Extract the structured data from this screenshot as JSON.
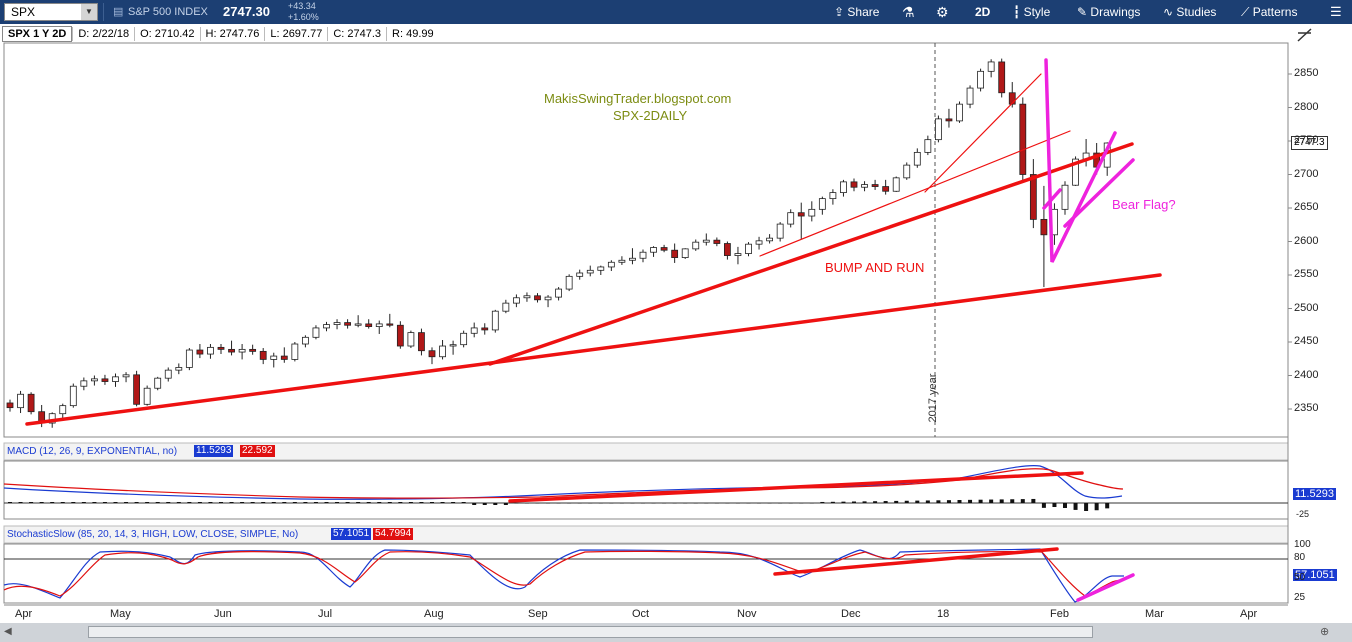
{
  "toolbar": {
    "symbol": "SPX",
    "name": "S&P 500 INDEX",
    "price": "2747.30",
    "change": "+43.34",
    "change_pct": "+1.60%",
    "share": "Share",
    "period": "2D",
    "style": "Style",
    "drawings": "Drawings",
    "studies": "Studies",
    "patterns": "Patterns"
  },
  "info": {
    "title": "SPX 1 Y 2D",
    "date": "D: 2/22/18",
    "open": "O: 2710.42",
    "high": "H: 2747.76",
    "low": "L: 2697.77",
    "close": "C: 2747.3",
    "rsi": "R: 49.99"
  },
  "annotations": {
    "site": "MakisSwingTrader.blogspot.com",
    "subtitle": "SPX-2DAILY",
    "bump": "BUMP AND RUN",
    "flag": "Bear Flag?",
    "year": "2017 year"
  },
  "macd": {
    "label": "MACD (12, 26, 9, EXPONENTIAL, no)",
    "v1": "11.5293",
    "v2": "22.592",
    "last": "11.5293"
  },
  "stoch": {
    "label": "StochasticSlow (85, 20, 14, 3, HIGH, LOW, CLOSE, SIMPLE, No)",
    "v1": "57.1051",
    "v2": "54.7994",
    "last": "57.1051"
  },
  "price_label": "2747.3",
  "colors": {
    "up": "#ffffff",
    "down": "#b01818",
    "trend": "#ee1111",
    "flag": "#ee22dd",
    "macd": "#1a3bd1",
    "signal": "#e01010",
    "toolbar": "#1c3f73"
  },
  "chart_data": {
    "type": "candlestick",
    "x_tick_labels": [
      "Apr",
      "May",
      "Jun",
      "Jul",
      "Aug",
      "Sep",
      "Oct",
      "Nov",
      "Dec",
      "18",
      "Feb",
      "Mar",
      "Apr"
    ],
    "y_ticks": [
      2350,
      2400,
      2450,
      2500,
      2550,
      2600,
      2650,
      2700,
      2750,
      2800,
      2850
    ],
    "ylim": [
      2310,
      2880
    ],
    "candles": [
      [
        2359,
        2364,
        2346,
        2352
      ],
      [
        2352,
        2377,
        2344,
        2372
      ],
      [
        2372,
        2375,
        2342,
        2346
      ],
      [
        2346,
        2356,
        2323,
        2329
      ],
      [
        2329,
        2345,
        2322,
        2343
      ],
      [
        2343,
        2358,
        2335,
        2355
      ],
      [
        2355,
        2388,
        2352,
        2384
      ],
      [
        2384,
        2397,
        2378,
        2392
      ],
      [
        2392,
        2400,
        2385,
        2395
      ],
      [
        2395,
        2401,
        2386,
        2391
      ],
      [
        2391,
        2403,
        2383,
        2398
      ],
      [
        2398,
        2405,
        2390,
        2401
      ],
      [
        2401,
        2407,
        2354,
        2357
      ],
      [
        2357,
        2385,
        2355,
        2381
      ],
      [
        2381,
        2398,
        2378,
        2396
      ],
      [
        2396,
        2412,
        2391,
        2408
      ],
      [
        2408,
        2418,
        2402,
        2412
      ],
      [
        2412,
        2441,
        2408,
        2438
      ],
      [
        2438,
        2447,
        2426,
        2432
      ],
      [
        2432,
        2447,
        2425,
        2442
      ],
      [
        2442,
        2447,
        2432,
        2439
      ],
      [
        2439,
        2452,
        2430,
        2435
      ],
      [
        2435,
        2447,
        2424,
        2439
      ],
      [
        2439,
        2446,
        2431,
        2436
      ],
      [
        2436,
        2441,
        2417,
        2424
      ],
      [
        2424,
        2434,
        2412,
        2429
      ],
      [
        2429,
        2442,
        2419,
        2424
      ],
      [
        2424,
        2450,
        2421,
        2447
      ],
      [
        2447,
        2460,
        2442,
        2457
      ],
      [
        2457,
        2475,
        2454,
        2471
      ],
      [
        2471,
        2480,
        2466,
        2476
      ],
      [
        2476,
        2484,
        2469,
        2479
      ],
      [
        2479,
        2484,
        2470,
        2475
      ],
      [
        2475,
        2490,
        2472,
        2477
      ],
      [
        2477,
        2484,
        2470,
        2473
      ],
      [
        2473,
        2482,
        2462,
        2477
      ],
      [
        2477,
        2492,
        2472,
        2475
      ],
      [
        2475,
        2481,
        2440,
        2444
      ],
      [
        2444,
        2467,
        2441,
        2464
      ],
      [
        2464,
        2470,
        2430,
        2437
      ],
      [
        2437,
        2442,
        2417,
        2428
      ],
      [
        2428,
        2453,
        2424,
        2444
      ],
      [
        2444,
        2452,
        2431,
        2446
      ],
      [
        2446,
        2467,
        2442,
        2463
      ],
      [
        2463,
        2479,
        2457,
        2471
      ],
      [
        2471,
        2478,
        2461,
        2468
      ],
      [
        2468,
        2498,
        2464,
        2496
      ],
      [
        2496,
        2513,
        2493,
        2508
      ],
      [
        2508,
        2521,
        2502,
        2516
      ],
      [
        2516,
        2524,
        2510,
        2519
      ],
      [
        2519,
        2523,
        2509,
        2513
      ],
      [
        2513,
        2520,
        2502,
        2517
      ],
      [
        2517,
        2532,
        2512,
        2529
      ],
      [
        2529,
        2551,
        2526,
        2548
      ],
      [
        2548,
        2558,
        2543,
        2553
      ],
      [
        2553,
        2564,
        2548,
        2557
      ],
      [
        2557,
        2564,
        2550,
        2562
      ],
      [
        2562,
        2572,
        2556,
        2569
      ],
      [
        2569,
        2578,
        2565,
        2572
      ],
      [
        2572,
        2590,
        2566,
        2575
      ],
      [
        2575,
        2588,
        2569,
        2584
      ],
      [
        2584,
        2593,
        2577,
        2591
      ],
      [
        2591,
        2595,
        2584,
        2587
      ],
      [
        2587,
        2597,
        2568,
        2576
      ],
      [
        2576,
        2590,
        2574,
        2589
      ],
      [
        2589,
        2603,
        2586,
        2599
      ],
      [
        2599,
        2612,
        2594,
        2602
      ],
      [
        2602,
        2606,
        2593,
        2597
      ],
      [
        2597,
        2600,
        2573,
        2579
      ],
      [
        2579,
        2592,
        2566,
        2582
      ],
      [
        2582,
        2599,
        2578,
        2596
      ],
      [
        2596,
        2607,
        2588,
        2601
      ],
      [
        2601,
        2611,
        2597,
        2605
      ],
      [
        2605,
        2629,
        2600,
        2626
      ],
      [
        2626,
        2648,
        2621,
        2643
      ],
      [
        2643,
        2658,
        2603,
        2638
      ],
      [
        2638,
        2660,
        2630,
        2648
      ],
      [
        2648,
        2667,
        2640,
        2664
      ],
      [
        2664,
        2678,
        2655,
        2673
      ],
      [
        2673,
        2692,
        2667,
        2689
      ],
      [
        2689,
        2694,
        2675,
        2681
      ],
      [
        2681,
        2690,
        2675,
        2685
      ],
      [
        2685,
        2692,
        2677,
        2682
      ],
      [
        2682,
        2692,
        2670,
        2675
      ],
      [
        2675,
        2697,
        2674,
        2695
      ],
      [
        2695,
        2718,
        2692,
        2714
      ],
      [
        2714,
        2739,
        2710,
        2733
      ],
      [
        2733,
        2758,
        2729,
        2752
      ],
      [
        2752,
        2788,
        2748,
        2783
      ],
      [
        2783,
        2798,
        2770,
        2780
      ],
      [
        2780,
        2809,
        2777,
        2805
      ],
      [
        2805,
        2833,
        2799,
        2829
      ],
      [
        2829,
        2858,
        2824,
        2854
      ],
      [
        2854,
        2872,
        2845,
        2868
      ],
      [
        2868,
        2873,
        2815,
        2822
      ],
      [
        2822,
        2838,
        2800,
        2805
      ],
      [
        2805,
        2815,
        2690,
        2700
      ],
      [
        2700,
        2723,
        2620,
        2633
      ],
      [
        2633,
        2683,
        2532,
        2610
      ],
      [
        2610,
        2657,
        2595,
        2648
      ],
      [
        2648,
        2690,
        2640,
        2684
      ],
      [
        2684,
        2727,
        2683,
        2723
      ],
      [
        2723,
        2753,
        2712,
        2732
      ],
      [
        2732,
        2747,
        2700,
        2711
      ],
      [
        2711,
        2748,
        2698,
        2747
      ]
    ]
  }
}
